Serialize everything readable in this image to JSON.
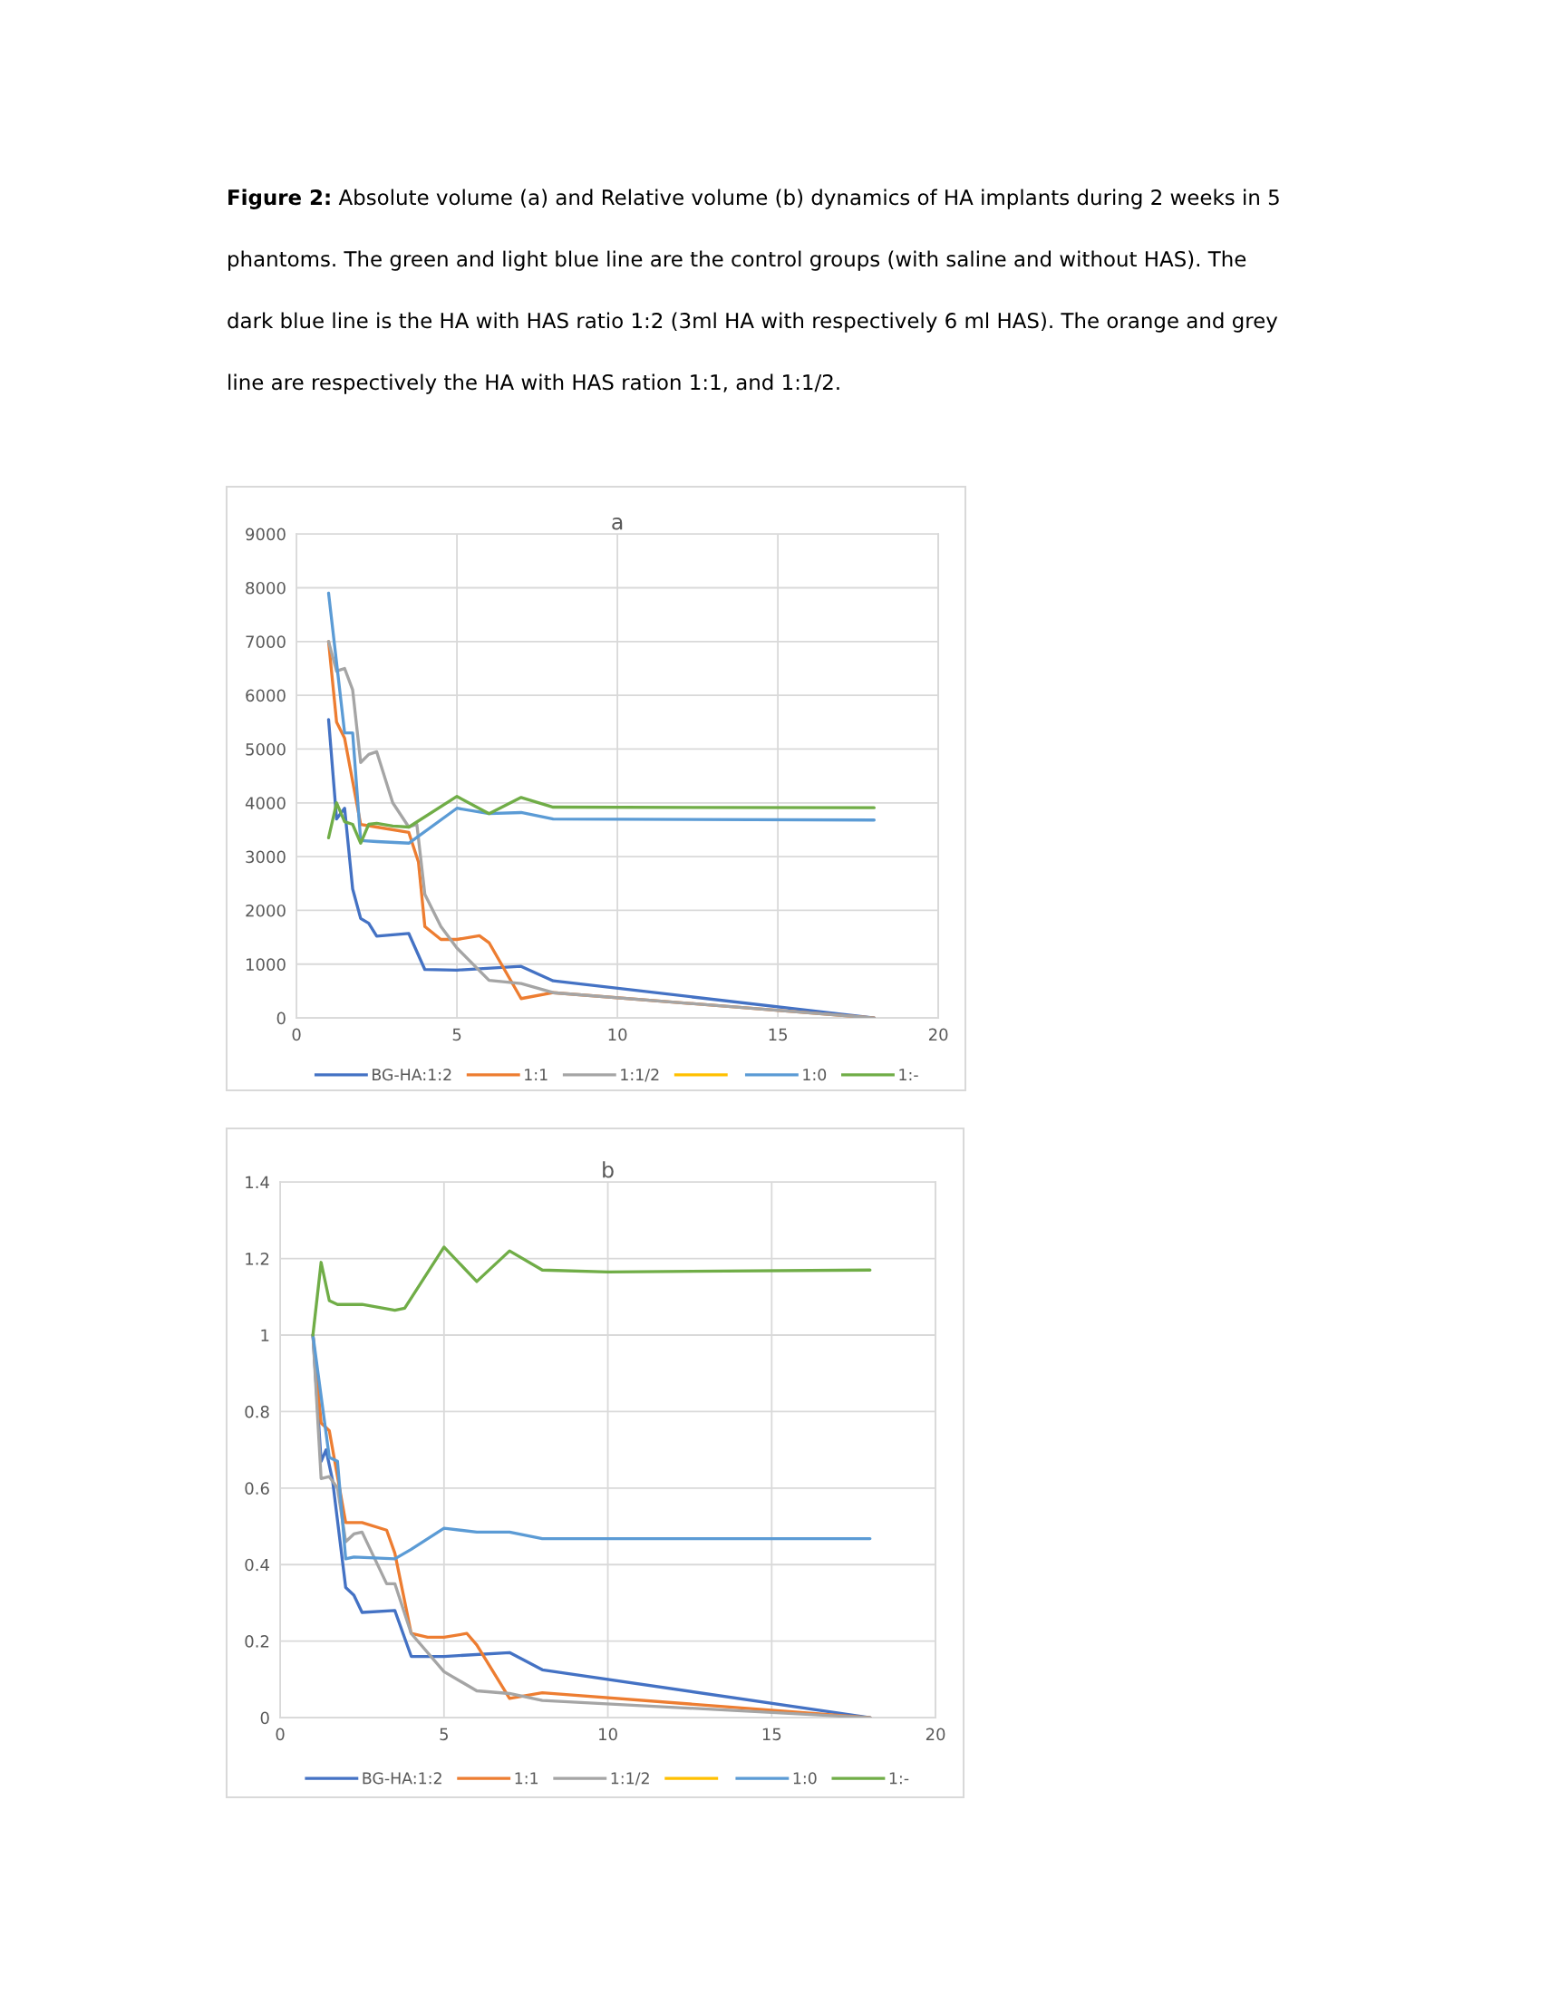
{
  "chart_data": [
    {
      "type": "line",
      "title": "a",
      "annotations": [
        "Figure 2:",
        "Absolute volume (a) and Relative volume (b) dynamics of HA implants during 2 weeks in 5 phantoms. The green and light blue line are the control groups (with saline and without HAS). The dark blue line is the HA with HAS ratio 1:2 (3ml HA with respectively 6 ml HAS). The orange and grey line are respectively the HA with HAS ration 1:1, and 1:1/2."
      ],
      "xlim": [
        0,
        20
      ],
      "xticks": [
        0,
        5,
        10,
        15,
        20
      ],
      "ylim": [
        0,
        9000
      ],
      "yticks": [
        0,
        1000,
        2000,
        3000,
        4000,
        5000,
        6000,
        7000,
        8000,
        9000
      ],
      "grid": true,
      "legend": "bottom",
      "marker": "none",
      "line_style": "solid",
      "series": [
        {
          "name": "BG-HA:1:2",
          "color": "#4472c4",
          "x": [
            1,
            1.25,
            1.5,
            1.75,
            2,
            2.25,
            2.5,
            3.5,
            4,
            5,
            7,
            8,
            18
          ],
          "values": [
            5550,
            3700,
            3900,
            2400,
            1850,
            1760,
            1520,
            1570,
            900,
            890,
            960,
            690,
            0
          ]
        },
        {
          "name": "1:1",
          "color": "#ed7d31",
          "x": [
            1,
            1.25,
            1.5,
            2,
            2.5,
            3.5,
            3.8,
            4,
            4.5,
            5,
            5.7,
            6,
            7,
            8,
            18
          ],
          "values": [
            7000,
            5500,
            5200,
            3600,
            3550,
            3450,
            2900,
            1700,
            1460,
            1460,
            1530,
            1400,
            360,
            470,
            0
          ]
        },
        {
          "name": "1:1/2",
          "color": "#a5a5a5",
          "x": [
            1,
            1.25,
            1.5,
            1.75,
            2,
            2.25,
            2.5,
            3,
            3.5,
            3.75,
            4,
            4.5,
            5,
            6,
            7,
            8,
            18
          ],
          "values": [
            7000,
            6450,
            6500,
            6100,
            4750,
            4900,
            4950,
            4000,
            3550,
            3600,
            2300,
            1700,
            1300,
            700,
            640,
            470,
            0
          ]
        },
        {
          "color": "#ffc000"
        },
        {
          "name": "1:0",
          "color": "#5b9bd5",
          "x": [
            1,
            1.5,
            1.75,
            2,
            2.5,
            3.5,
            5,
            6,
            7,
            8,
            18
          ],
          "values": [
            7900,
            5300,
            5300,
            3300,
            3280,
            3250,
            3900,
            3800,
            3820,
            3700,
            3680
          ]
        },
        {
          "name": "1:-",
          "color": "#70ad47",
          "x": [
            1,
            1.25,
            1.5,
            1.75,
            2,
            2.25,
            2.5,
            3,
            3.5,
            5,
            6,
            7,
            8,
            18
          ],
          "values": [
            3350,
            4000,
            3650,
            3600,
            3250,
            3600,
            3620,
            3570,
            3550,
            4120,
            3800,
            4100,
            3920,
            3910
          ]
        }
      ]
    },
    {
      "type": "line",
      "title": "b",
      "xlim": [
        0,
        20
      ],
      "xticks": [
        0,
        5,
        10,
        15,
        20
      ],
      "ylim": [
        0,
        1.4
      ],
      "yticks": [
        0,
        0.2,
        0.4,
        0.6,
        0.8,
        1,
        1.2,
        1.4
      ],
      "grid": true,
      "legend": "bottom",
      "marker": "none",
      "line_style": "solid",
      "series": [
        {
          "name": "BG-HA:1:2",
          "color": "#4472c4",
          "x": [
            1,
            1.25,
            1.4,
            1.6,
            2,
            2.25,
            2.5,
            3.5,
            4,
            5,
            7,
            8,
            18
          ],
          "values": [
            1.0,
            0.67,
            0.7,
            0.62,
            0.34,
            0.32,
            0.275,
            0.28,
            0.16,
            0.16,
            0.17,
            0.125,
            0
          ]
        },
        {
          "name": "1:1",
          "color": "#ed7d31",
          "x": [
            1,
            1.25,
            1.5,
            2,
            2.5,
            3.25,
            3.5,
            4,
            4.5,
            5,
            5.7,
            6,
            7,
            8,
            18
          ],
          "values": [
            1.0,
            0.77,
            0.75,
            0.51,
            0.51,
            0.49,
            0.43,
            0.22,
            0.21,
            0.21,
            0.22,
            0.19,
            0.05,
            0.065,
            0
          ]
        },
        {
          "name": "1:1/2",
          "color": "#a5a5a5",
          "x": [
            1,
            1.25,
            1.5,
            1.75,
            2,
            2.25,
            2.5,
            3.25,
            3.5,
            4,
            5,
            6,
            7,
            8,
            18
          ],
          "values": [
            1.0,
            0.625,
            0.63,
            0.6,
            0.46,
            0.48,
            0.485,
            0.35,
            0.35,
            0.22,
            0.12,
            0.07,
            0.063,
            0.045,
            0
          ]
        },
        {
          "color": "#ffc000"
        },
        {
          "name": "1:0",
          "color": "#5b9bd5",
          "x": [
            1,
            1.5,
            1.75,
            2,
            2.25,
            3.5,
            4,
            5,
            6,
            7,
            8,
            18
          ],
          "values": [
            1.0,
            0.68,
            0.67,
            0.415,
            0.42,
            0.415,
            0.44,
            0.495,
            0.485,
            0.485,
            0.468,
            0.468
          ]
        },
        {
          "name": "1:-",
          "color": "#70ad47",
          "x": [
            1,
            1.25,
            1.5,
            1.75,
            2.5,
            3.5,
            3.8,
            5,
            6,
            7,
            8,
            10,
            18
          ],
          "values": [
            1.0,
            1.19,
            1.09,
            1.08,
            1.08,
            1.065,
            1.07,
            1.23,
            1.14,
            1.22,
            1.17,
            1.165,
            1.17
          ]
        }
      ]
    }
  ]
}
